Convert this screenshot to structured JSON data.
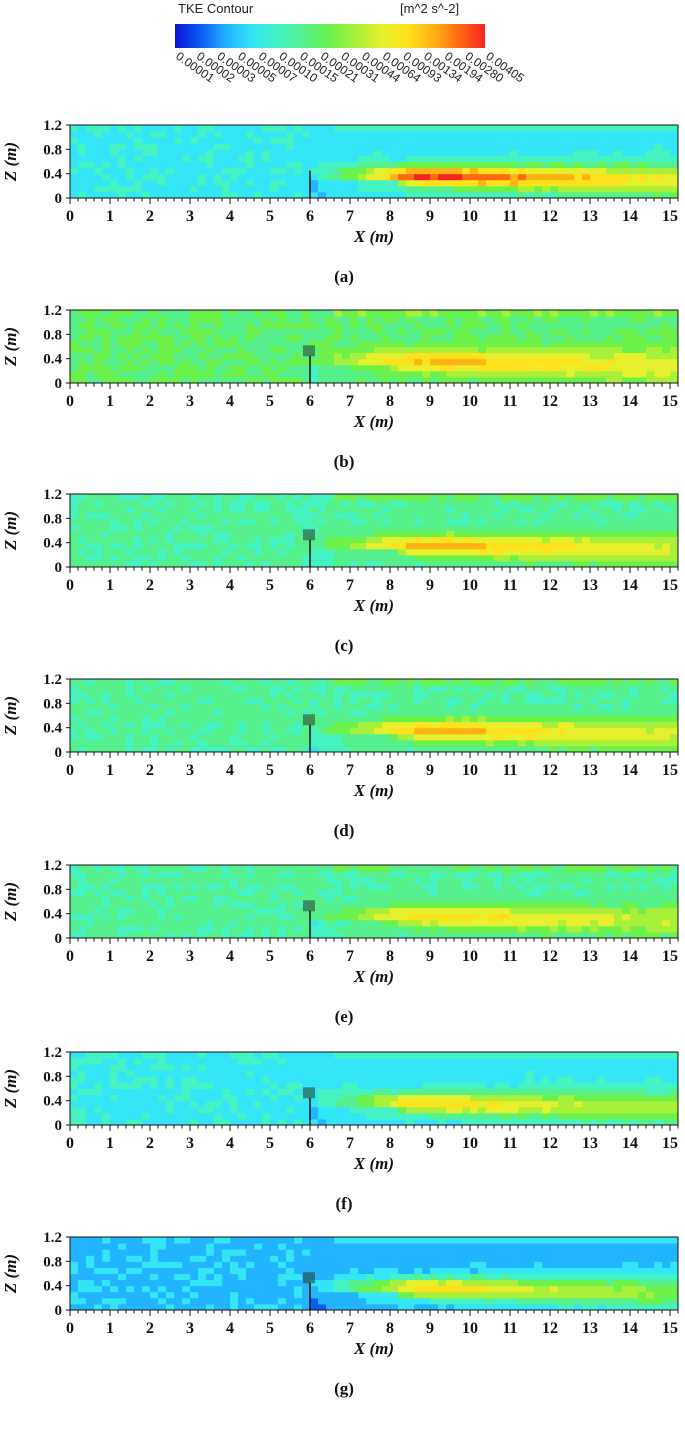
{
  "colorbar": {
    "title": "TKE Contour",
    "unit": "[m^2 s^-2]",
    "levels": [
      "0.00001",
      "0.00002",
      "0.00003",
      "0.00005",
      "0.00007",
      "0.00010",
      "0.00015",
      "0.00021",
      "0.00031",
      "0.00044",
      "0.00064",
      "0.00093",
      "0.00134",
      "0.00194",
      "0.00280",
      "0.00405"
    ],
    "colors": [
      "#0a12d8",
      "#0a5cf2",
      "#22b4ff",
      "#33e6f6",
      "#44f2c2",
      "#55f08c",
      "#6cf04a",
      "#a8f03a",
      "#e6f02c",
      "#ffe21c",
      "#ffb214",
      "#ff6a10",
      "#f22424"
    ]
  },
  "chart_data": [
    {
      "type": "heatmap",
      "panel": "(a)",
      "xlabel": "X (m)",
      "ylabel": "Z (m)",
      "xlim": [
        0,
        15.2
      ],
      "ylim": [
        0,
        1.2
      ],
      "x_ticks": [
        "0",
        "1",
        "2",
        "3",
        "4",
        "5",
        "6",
        "7",
        "8",
        "9",
        "10",
        "11",
        "12",
        "13",
        "14",
        "15"
      ],
      "y_ticks": [
        "0",
        "0.4",
        "0.8",
        "1.2"
      ],
      "obstacle": {
        "x": 6.0,
        "z_top": 0.45,
        "porous_block": false
      },
      "wake": {
        "peak_tke": 0.0035,
        "peak_x": 9.0,
        "peak_z": 0.4,
        "freestream_tke": 5e-05
      }
    },
    {
      "type": "heatmap",
      "panel": "(b)",
      "xlabel": "X (m)",
      "ylabel": "Z (m)",
      "xlim": [
        0,
        15.2
      ],
      "ylim": [
        0,
        1.2
      ],
      "x_ticks": [
        "0",
        "1",
        "2",
        "3",
        "4",
        "5",
        "6",
        "7",
        "8",
        "9",
        "10",
        "11",
        "12",
        "13",
        "14",
        "15"
      ],
      "y_ticks": [
        "0",
        "0.4",
        "0.8",
        "1.2"
      ],
      "obstacle": {
        "x": 6.0,
        "z_top": 0.45,
        "porous_block": true
      },
      "wake": {
        "peak_tke": 0.00134,
        "peak_x": 9.0,
        "peak_z": 0.4,
        "freestream_tke": 0.00015
      }
    },
    {
      "type": "heatmap",
      "panel": "(c)",
      "xlabel": "X (m)",
      "ylabel": "Z (m)",
      "xlim": [
        0,
        15.2
      ],
      "ylim": [
        0,
        1.2
      ],
      "x_ticks": [
        "0",
        "1",
        "2",
        "3",
        "4",
        "5",
        "6",
        "7",
        "8",
        "9",
        "10",
        "11",
        "12",
        "13",
        "14",
        "15"
      ],
      "y_ticks": [
        "0",
        "0.4",
        "0.8",
        "1.2"
      ],
      "obstacle": {
        "x": 6.0,
        "z_top": 0.45,
        "porous_block": true
      },
      "wake": {
        "peak_tke": 0.00134,
        "peak_x": 9.0,
        "peak_z": 0.4,
        "freestream_tke": 0.0001
      }
    },
    {
      "type": "heatmap",
      "panel": "(d)",
      "xlabel": "X (m)",
      "ylabel": "Z (m)",
      "xlim": [
        0,
        15.2
      ],
      "ylim": [
        0,
        1.2
      ],
      "x_ticks": [
        "0",
        "1",
        "2",
        "3",
        "4",
        "5",
        "6",
        "7",
        "8",
        "9",
        "10",
        "11",
        "12",
        "13",
        "14",
        "15"
      ],
      "y_ticks": [
        "0",
        "0.4",
        "0.8",
        "1.2"
      ],
      "obstacle": {
        "x": 6.0,
        "z_top": 0.45,
        "porous_block": true
      },
      "wake": {
        "peak_tke": 0.00134,
        "peak_x": 9.0,
        "peak_z": 0.4,
        "freestream_tke": 0.0001
      }
    },
    {
      "type": "heatmap",
      "panel": "(e)",
      "xlabel": "X (m)",
      "ylabel": "Z (m)",
      "xlim": [
        0,
        15.2
      ],
      "ylim": [
        0,
        1.2
      ],
      "x_ticks": [
        "0",
        "1",
        "2",
        "3",
        "4",
        "5",
        "6",
        "7",
        "8",
        "9",
        "10",
        "11",
        "12",
        "13",
        "14",
        "15"
      ],
      "y_ticks": [
        "0",
        "0.4",
        "0.8",
        "1.2"
      ],
      "obstacle": {
        "x": 6.0,
        "z_top": 0.45,
        "porous_block": true
      },
      "wake": {
        "peak_tke": 0.00093,
        "peak_x": 9.0,
        "peak_z": 0.4,
        "freestream_tke": 0.0001
      }
    },
    {
      "type": "heatmap",
      "panel": "(f)",
      "xlabel": "X (m)",
      "ylabel": "Z (m)",
      "xlim": [
        0,
        15.2
      ],
      "ylim": [
        0,
        1.2
      ],
      "x_ticks": [
        "0",
        "1",
        "2",
        "3",
        "4",
        "5",
        "6",
        "7",
        "8",
        "9",
        "10",
        "11",
        "12",
        "13",
        "14",
        "15"
      ],
      "y_ticks": [
        "0",
        "0.4",
        "0.8",
        "1.2"
      ],
      "obstacle": {
        "x": 6.0,
        "z_top": 0.45,
        "porous_block": true
      },
      "wake": {
        "peak_tke": 0.00093,
        "peak_x": 9.0,
        "peak_z": 0.4,
        "freestream_tke": 5e-05
      }
    },
    {
      "type": "heatmap",
      "panel": "(g)",
      "xlabel": "X (m)",
      "ylabel": "Z (m)",
      "xlim": [
        0,
        15.2
      ],
      "ylim": [
        0,
        1.2
      ],
      "x_ticks": [
        "0",
        "1",
        "2",
        "3",
        "4",
        "5",
        "6",
        "7",
        "8",
        "9",
        "10",
        "11",
        "12",
        "13",
        "14",
        "15"
      ],
      "y_ticks": [
        "0",
        "0.4",
        "0.8",
        "1.2"
      ],
      "obstacle": {
        "x": 6.0,
        "z_top": 0.45,
        "porous_block": true
      },
      "wake": {
        "peak_tke": 0.00093,
        "peak_x": 9.0,
        "peak_z": 0.4,
        "freestream_tke": 3e-05
      }
    }
  ]
}
